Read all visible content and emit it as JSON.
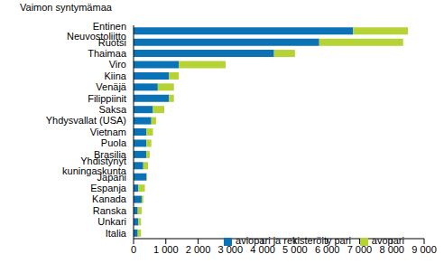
{
  "chart_data": {
    "type": "bar",
    "orientation": "horizontal",
    "stacked": true,
    "grid": false,
    "legend": "lower right",
    "y_label": "Vaimon syntymämaa",
    "categories": [
      "Entinen Neuvostoliitto",
      "Ruotsi",
      "Thaimaa",
      "Viro",
      "Kiina",
      "Venäjä",
      "Filippiinit",
      "Saksa",
      "Yhdysvallat (USA)",
      "Vietnam",
      "Puola",
      "Brasilia",
      "Yhdistynyt kuningaskunta",
      "Japani",
      "Espanja",
      "Kanada",
      "Ranska",
      "Unkari",
      "Italia"
    ],
    "series": [
      {
        "name": "aviopari ja rekisteröity pari",
        "color": "#0a72b5",
        "values": [
          6800,
          5750,
          4350,
          1400,
          1100,
          750,
          1100,
          600,
          550,
          400,
          400,
          400,
          300,
          400,
          150,
          250,
          130,
          150,
          130
        ]
      },
      {
        "name": "avopari",
        "color": "#b5d334",
        "values": [
          1700,
          2600,
          650,
          1450,
          300,
          500,
          150,
          350,
          150,
          200,
          150,
          100,
          150,
          20,
          200,
          50,
          120,
          80,
          100
        ]
      }
    ],
    "xlim": [
      0,
      9000
    ],
    "xticks": [
      0,
      {
        "value": 1000,
        "label": "1 000"
      },
      {
        "value": 2000,
        "label": "2 000"
      },
      {
        "value": 3000,
        "label": "3 000"
      },
      {
        "value": 4000,
        "label": "4 000"
      },
      {
        "value": 5000,
        "label": "5 000"
      },
      {
        "value": 6000,
        "label": "6 000"
      },
      {
        "value": 7000,
        "label": "7 000"
      },
      {
        "value": 8000,
        "label": "8 000"
      },
      {
        "value": 9000,
        "label": "9 000"
      }
    ]
  }
}
